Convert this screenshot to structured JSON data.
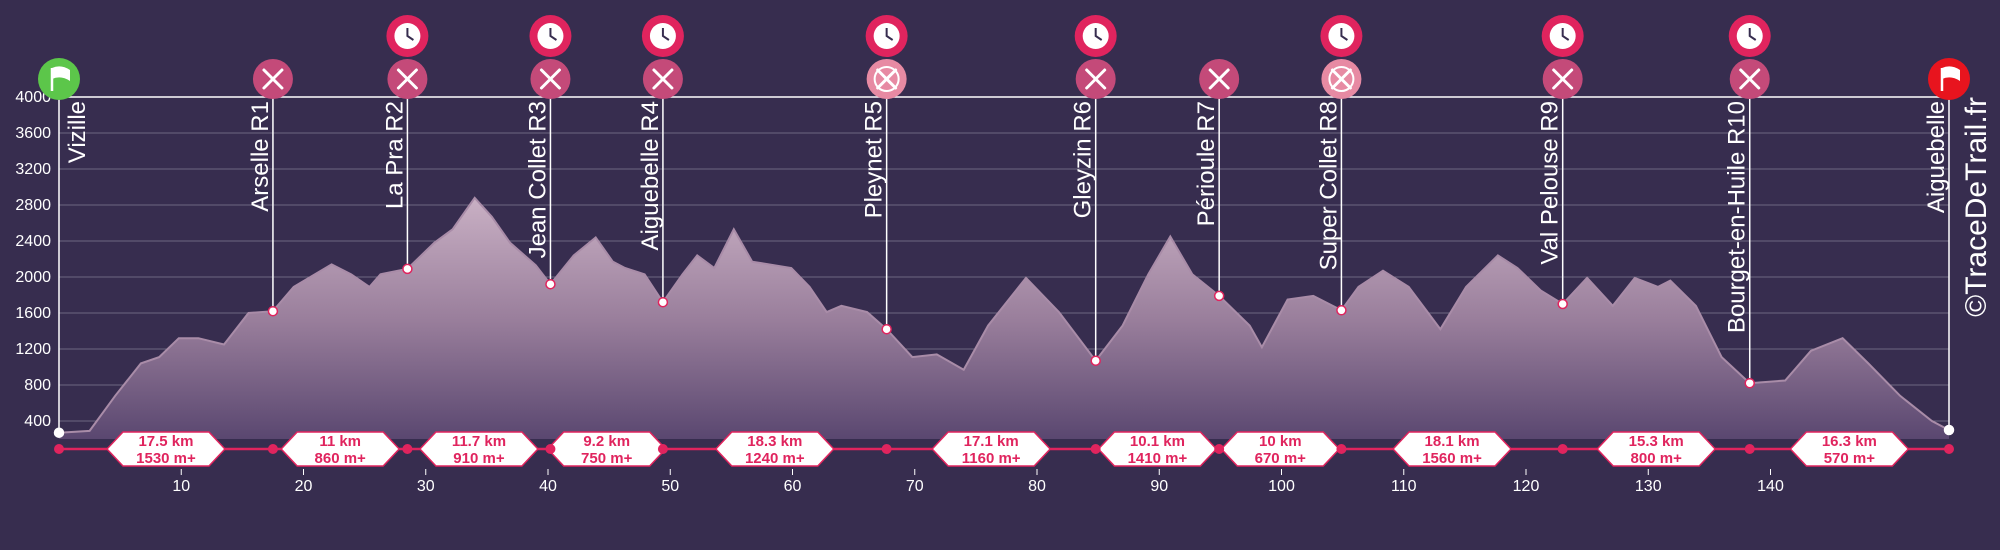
{
  "chart_data": {
    "type": "area",
    "color": "#a98ca8",
    "x": [
      0,
      2.5,
      4.6,
      6.7,
      8.2,
      9.8,
      11.4,
      13.5,
      15.5,
      17.5,
      19.2,
      22.3,
      23.9,
      25.4,
      26.3,
      28.5,
      30.7,
      32.2,
      34.0,
      35.4,
      36.9,
      39.0,
      40.2,
      42.1,
      43.9,
      45.3,
      46.3,
      47.9,
      49.4,
      51.0,
      52.2,
      53.6,
      55.2,
      56.7,
      59.9,
      61.4,
      62.8,
      64.0,
      66.1,
      67.7,
      69.8,
      71.8,
      74.0,
      76.0,
      79.1,
      81.8,
      84.8,
      87.0,
      89.1,
      90.9,
      92.7,
      94.9,
      97.4,
      98.4,
      100.5,
      102.6,
      104.9,
      106.3,
      108.3,
      110.4,
      113.0,
      115.1,
      117.7,
      119.3,
      121.2,
      123.0,
      125.0,
      127.1,
      128.9,
      130.8,
      131.8,
      133.9,
      136.0,
      138.3,
      141.2,
      143.3,
      145.9,
      148.0,
      150.6,
      153.2,
      154.6
    ],
    "values": [
      270,
      290,
      680,
      1040,
      1110,
      1320,
      1320,
      1250,
      1600,
      1620,
      1890,
      2140,
      2030,
      1890,
      2030,
      2090,
      2380,
      2530,
      2880,
      2670,
      2380,
      2130,
      1920,
      2240,
      2440,
      2170,
      2100,
      2030,
      1720,
      2030,
      2240,
      2100,
      2530,
      2170,
      2100,
      1890,
      1610,
      1680,
      1610,
      1420,
      1110,
      1140,
      970,
      1460,
      1990,
      1610,
      1070,
      1460,
      2030,
      2450,
      2030,
      1790,
      1460,
      1220,
      1750,
      1790,
      1630,
      1890,
      2070,
      1890,
      1420,
      1890,
      2240,
      2100,
      1850,
      1700,
      1990,
      1680,
      1990,
      1890,
      1960,
      1680,
      1110,
      820,
      850,
      1180,
      1320,
      1040,
      680,
      400,
      300
    ],
    "xlim": [
      0,
      154.6
    ],
    "ylim": [
      200,
      4000
    ],
    "xticks": [
      10,
      20,
      30,
      40,
      50,
      60,
      70,
      80,
      90,
      100,
      110,
      120,
      130,
      140
    ],
    "yticks": [
      400,
      800,
      1200,
      1600,
      2000,
      2400,
      2800,
      3200,
      3600,
      4000
    ],
    "grid": true,
    "stations": [
      {
        "name": "Vizille",
        "km": 0,
        "elevation": 270,
        "clock": false,
        "meal": false
      },
      {
        "name": "Arselle R1",
        "km": 17.5,
        "elevation": 1620,
        "clock": false,
        "meal": false
      },
      {
        "name": "La Pra R2",
        "km": 28.5,
        "elevation": 2090,
        "clock": true,
        "meal": false
      },
      {
        "name": "Jean Collet R3",
        "km": 40.2,
        "elevation": 1920,
        "clock": true,
        "meal": false
      },
      {
        "name": "Aiguebelle R4",
        "km": 49.4,
        "elevation": 1720,
        "clock": true,
        "meal": false
      },
      {
        "name": "Pleynet R5",
        "km": 67.7,
        "elevation": 1420,
        "clock": true,
        "meal": true
      },
      {
        "name": "Gleyzin R6",
        "km": 84.8,
        "elevation": 1070,
        "clock": true,
        "meal": false
      },
      {
        "name": "Périoule R7",
        "km": 94.9,
        "elevation": 1790,
        "clock": false,
        "meal": false
      },
      {
        "name": "Super Collet R8",
        "km": 104.9,
        "elevation": 1630,
        "clock": true,
        "meal": true
      },
      {
        "name": "Val Pelouse R9",
        "km": 123.0,
        "elevation": 1700,
        "clock": true,
        "meal": false
      },
      {
        "name": "Bourget-en-Huile R10",
        "km": 138.3,
        "elevation": 820,
        "clock": true,
        "meal": false
      },
      {
        "name": "Aiguebelle",
        "km": 154.6,
        "elevation": 300,
        "clock": false,
        "meal": false
      }
    ],
    "segments": [
      {
        "distance": "17.5 km",
        "gain": "1530 m+"
      },
      {
        "distance": "11 km",
        "gain": "860 m+"
      },
      {
        "distance": "11.7 km",
        "gain": "910 m+"
      },
      {
        "distance": "9.2 km",
        "gain": "750 m+"
      },
      {
        "distance": "18.3 km",
        "gain": "1240 m+"
      },
      {
        "distance": "17.1 km",
        "gain": "1160 m+"
      },
      {
        "distance": "10.1 km",
        "gain": "1410 m+"
      },
      {
        "distance": "10 km",
        "gain": "670 m+"
      },
      {
        "distance": "18.1 km",
        "gain": "1560 m+"
      },
      {
        "distance": "15.3 km",
        "gain": "800 m+"
      },
      {
        "distance": "16.3 km",
        "gain": "570 m+"
      }
    ],
    "watermark": "©TraceDeTrail.fr"
  }
}
